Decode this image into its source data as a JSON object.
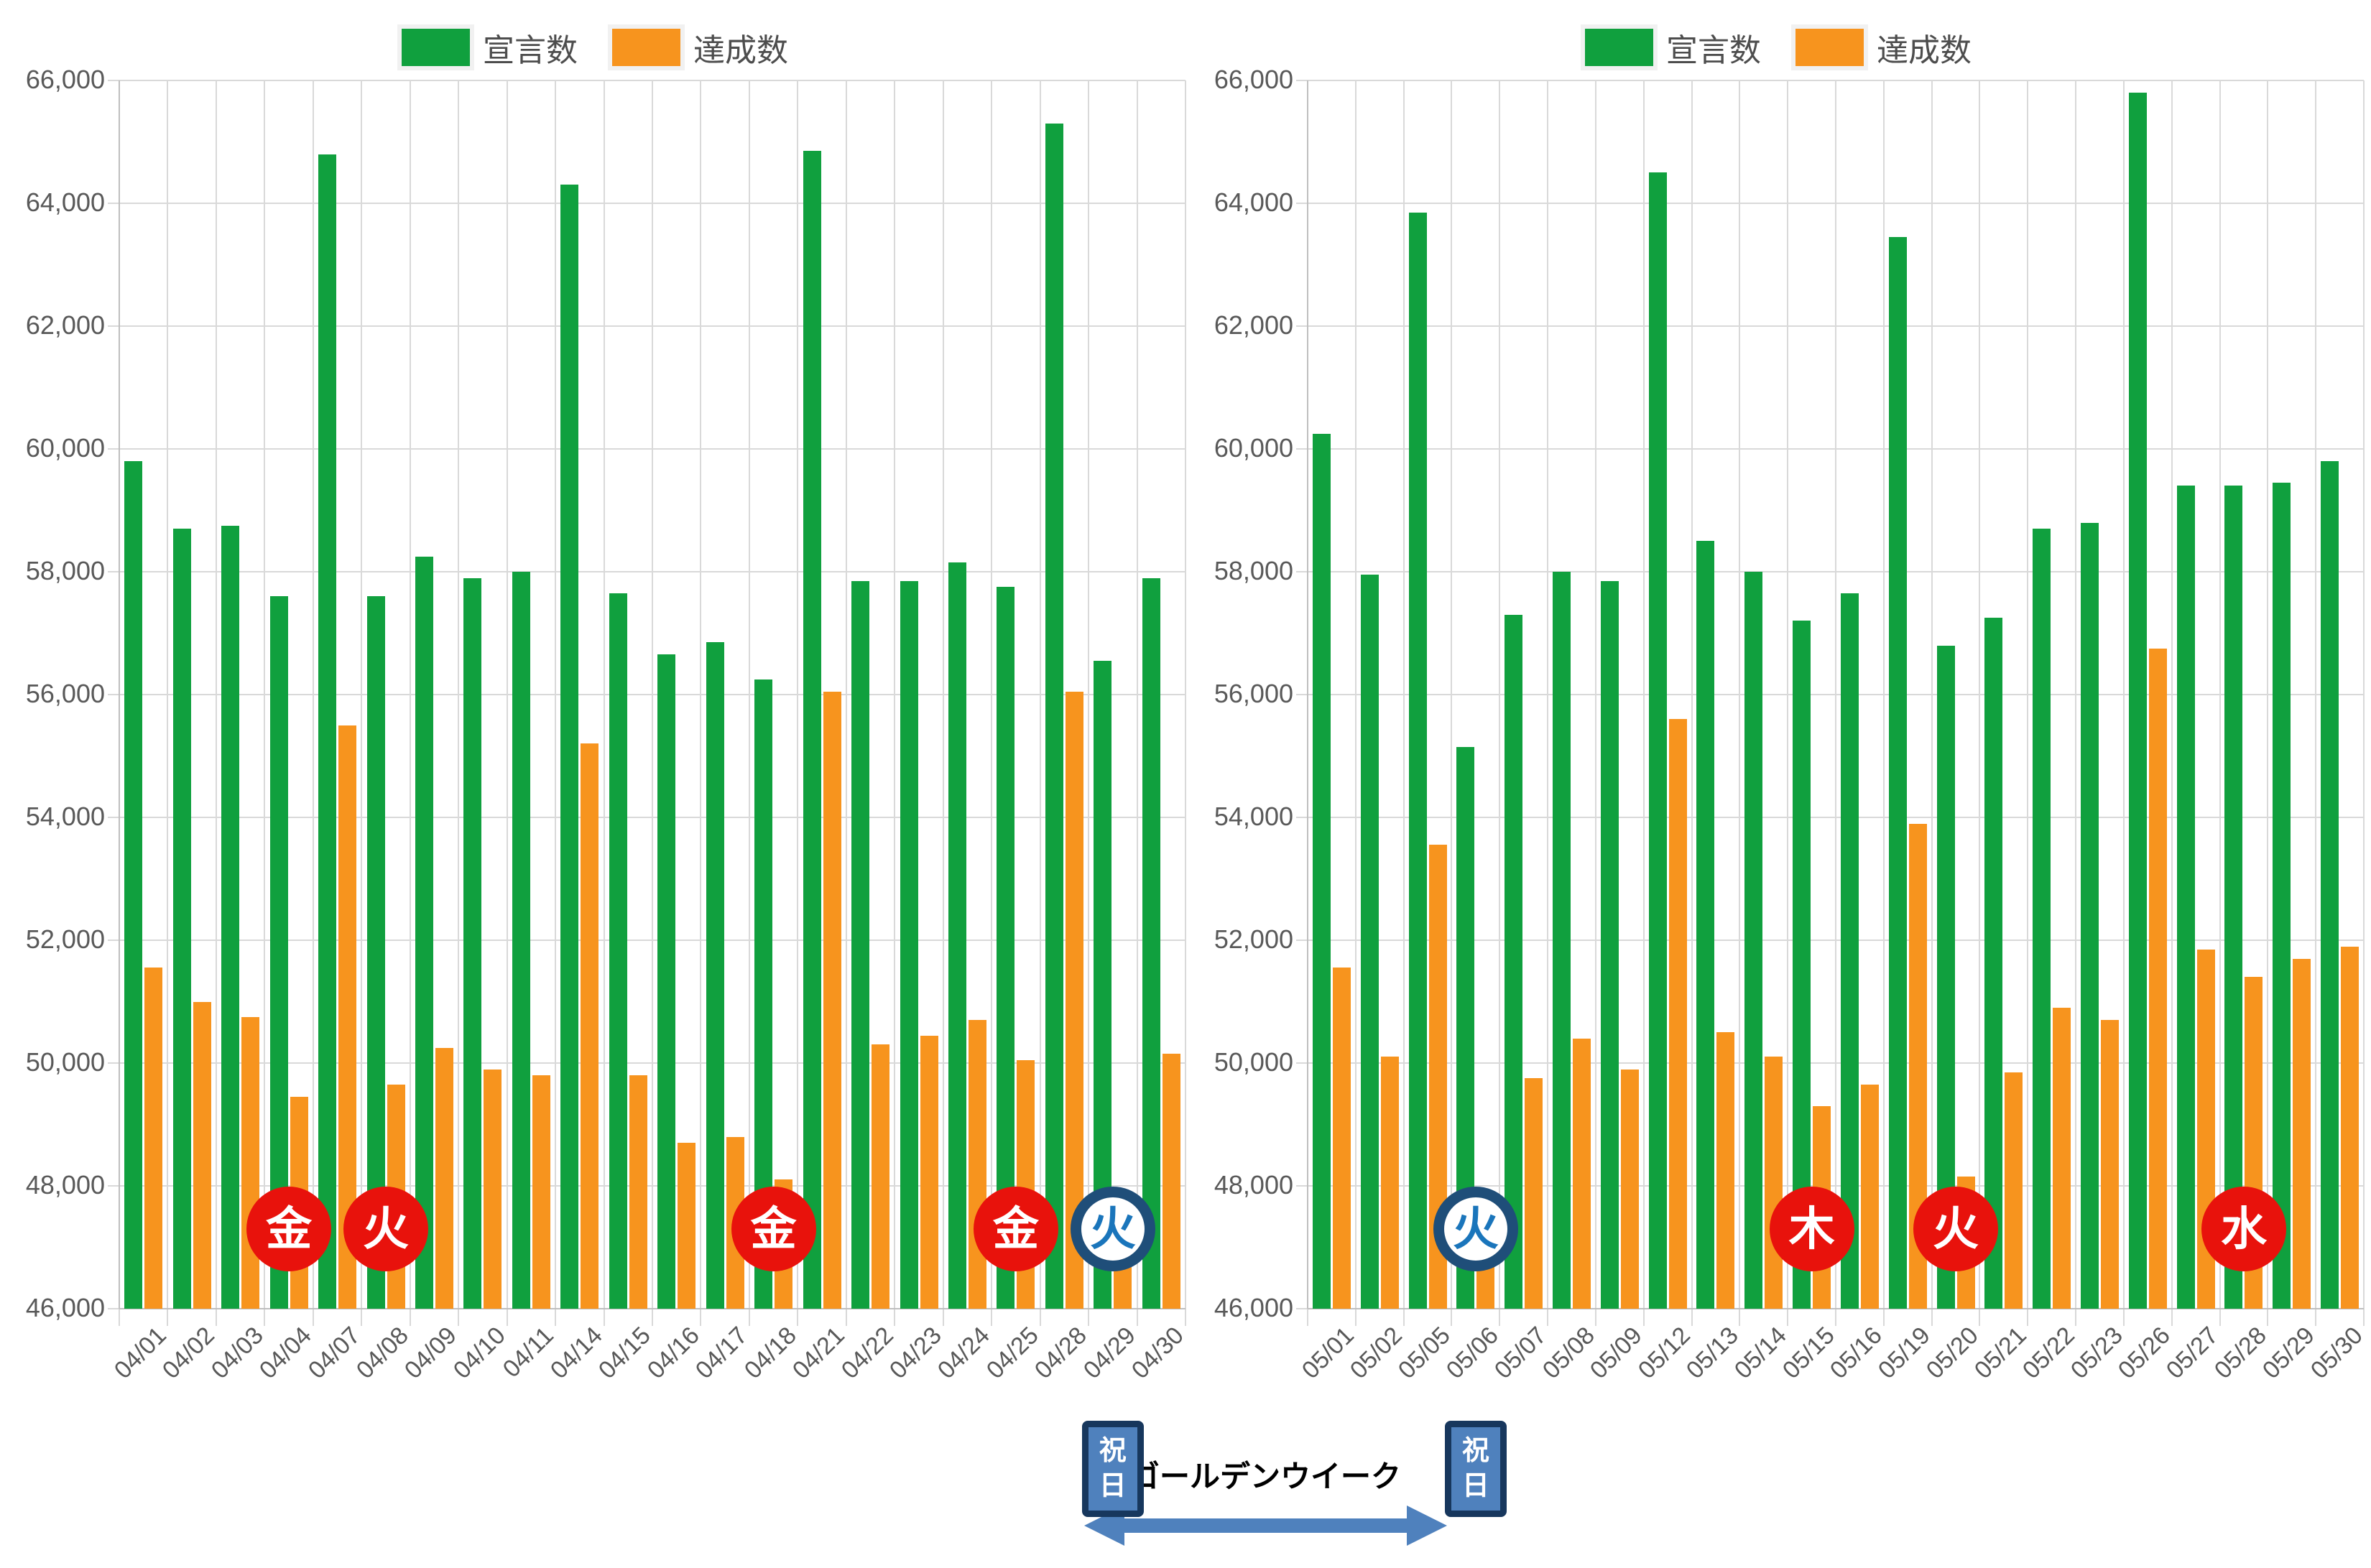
{
  "chart_data": [
    {
      "type": "bar",
      "title": "",
      "legend_position": "top",
      "grid": true,
      "y_axis": {
        "min": 46000,
        "max": 66000,
        "step": 2000,
        "tick_labels": [
          "66,000",
          "64,000",
          "62,000",
          "60,000",
          "58,000",
          "56,000",
          "54,000",
          "52,000",
          "50,000",
          "48,000",
          "46,000"
        ]
      },
      "categories": [
        "04/01",
        "04/02",
        "04/03",
        "04/04",
        "04/07",
        "04/08",
        "04/09",
        "04/10",
        "04/11",
        "04/14",
        "04/15",
        "04/16",
        "04/17",
        "04/18",
        "04/21",
        "04/22",
        "04/23",
        "04/24",
        "04/25",
        "04/28",
        "04/29",
        "04/30"
      ],
      "series": [
        {
          "key": "declared",
          "name": "宣言数",
          "color": "#10A03E",
          "values": [
            59800,
            58700,
            58750,
            57600,
            64800,
            57600,
            58250,
            57900,
            58000,
            64300,
            57650,
            56650,
            56850,
            56250,
            64850,
            57850,
            57850,
            58150,
            57750,
            65300,
            56550,
            57900
          ]
        },
        {
          "key": "achieved",
          "name": "達成数",
          "color": "#F7941E",
          "values": [
            51550,
            51000,
            50750,
            49450,
            55500,
            49650,
            50250,
            49900,
            49800,
            55200,
            49800,
            48700,
            48800,
            48100,
            56050,
            50300,
            50450,
            50700,
            50050,
            56050,
            47000,
            50150
          ]
        }
      ],
      "day_markers": [
        {
          "category": "04/04",
          "label": "金",
          "style": "red"
        },
        {
          "category": "04/08",
          "label": "火",
          "style": "red"
        },
        {
          "category": "04/18",
          "label": "金",
          "style": "red"
        },
        {
          "category": "04/25",
          "label": "金",
          "style": "red"
        },
        {
          "category": "04/29",
          "label": "火",
          "style": "blue"
        }
      ]
    },
    {
      "type": "bar",
      "title": "",
      "legend_position": "top",
      "grid": true,
      "y_axis": {
        "min": 46000,
        "max": 66000,
        "step": 2000,
        "tick_labels": [
          "66,000",
          "64,000",
          "62,000",
          "60,000",
          "58,000",
          "56,000",
          "54,000",
          "52,000",
          "50,000",
          "48,000",
          "46,000"
        ]
      },
      "categories": [
        "05/01",
        "05/02",
        "05/05",
        "05/06",
        "05/07",
        "05/08",
        "05/09",
        "05/12",
        "05/13",
        "05/14",
        "05/15",
        "05/16",
        "05/19",
        "05/20",
        "05/21",
        "05/22",
        "05/23",
        "05/26",
        "05/27",
        "05/28",
        "05/29",
        "05/30"
      ],
      "series": [
        {
          "key": "declared",
          "name": "宣言数",
          "color": "#10A03E",
          "values": [
            60250,
            57950,
            63850,
            55150,
            57300,
            58000,
            57850,
            64500,
            58500,
            58000,
            57200,
            57650,
            63450,
            56800,
            57250,
            58700,
            58800,
            65800,
            59400,
            59400,
            59450,
            59800
          ]
        },
        {
          "key": "achieved",
          "name": "達成数",
          "color": "#F7941E",
          "values": [
            51550,
            50100,
            53550,
            47000,
            49750,
            50400,
            49900,
            55600,
            50500,
            50100,
            49300,
            49650,
            53900,
            48150,
            49850,
            50900,
            50700,
            56750,
            51850,
            51400,
            51700,
            51900
          ]
        }
      ],
      "day_markers": [
        {
          "category": "05/06",
          "label": "火",
          "style": "blue"
        },
        {
          "category": "05/15",
          "label": "木",
          "style": "red"
        },
        {
          "category": "05/20",
          "label": "火",
          "style": "red"
        },
        {
          "category": "05/28",
          "label": "水",
          "style": "red"
        }
      ]
    }
  ],
  "annotations": {
    "golden_week_label": "ゴールデンウイーク",
    "holiday_badge_text": "祝日",
    "holiday_badges": [
      {
        "chart_index": 0,
        "category": "04/29"
      },
      {
        "chart_index": 1,
        "category": "05/06"
      }
    ]
  },
  "colors": {
    "declared_green": "#10A03E",
    "achieved_orange": "#F7941E",
    "marker_red_fill": "#E8120C",
    "marker_red_text": "#FFFFFF",
    "marker_blue_ring": "#1F4E79",
    "marker_blue_text": "#1A75BB",
    "badge_fill": "#4F81BD",
    "badge_border": "#17375D",
    "badge_text": "#FFFFFF",
    "arrow_blue": "#4F81BD",
    "gridline": "#D9D9D9",
    "axis_line": "#BFBFBF",
    "tick_text": "#595959",
    "legend_text": "#4D4D4D"
  }
}
